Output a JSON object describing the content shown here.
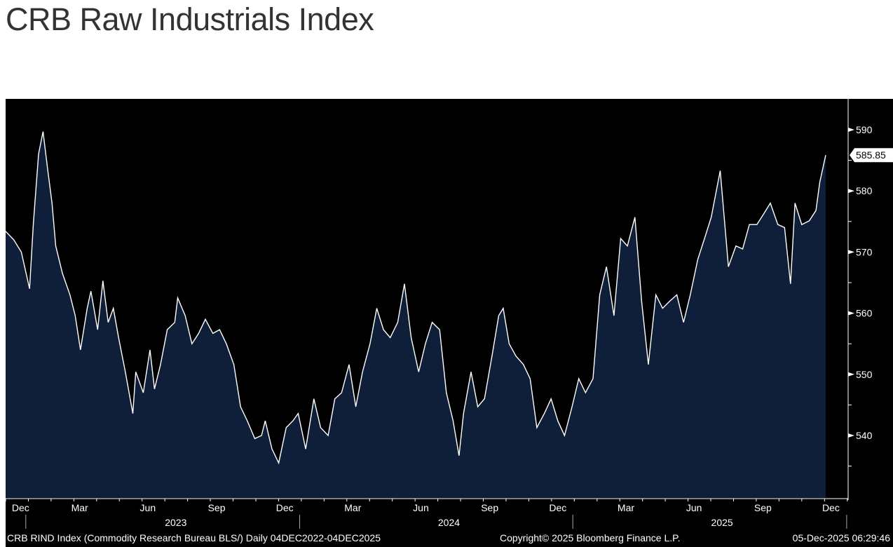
{
  "chart_data": {
    "type": "area",
    "title": "CRB Raw Industrials Index",
    "x_unit": "days since 04DEC2022",
    "ylim": [
      531,
      595
    ],
    "y_ticks": [
      540,
      550,
      560,
      570,
      580,
      590
    ],
    "last_value_label": "585.85",
    "x_ticks": [
      {
        "label": "Dec",
        "day": 20
      },
      {
        "label": "Mar",
        "day": 99
      },
      {
        "label": "Jun",
        "day": 190
      },
      {
        "label": "Sep",
        "day": 282
      },
      {
        "label": "Dec",
        "day": 373
      },
      {
        "label": "Mar",
        "day": 464
      },
      {
        "label": "Jun",
        "day": 555
      },
      {
        "label": "Sep",
        "day": 647
      },
      {
        "label": "Dec",
        "day": 738
      },
      {
        "label": "Mar",
        "day": 829
      },
      {
        "label": "Jun",
        "day": 920
      },
      {
        "label": "Sep",
        "day": 1012
      },
      {
        "label": "Dec",
        "day": 1103
      }
    ],
    "years": [
      {
        "label": "2023",
        "day": 190
      },
      {
        "label": "2024",
        "day": 555
      },
      {
        "label": "2025",
        "day": 920
      }
    ],
    "year_boundaries": [
      27,
      393,
      758,
      1124
    ],
    "x": [
      0,
      11,
      21,
      32,
      37,
      44,
      50,
      56,
      62,
      67,
      76,
      86,
      93,
      100,
      109,
      114,
      123,
      130,
      137,
      144,
      151,
      160,
      170,
      174,
      184,
      193,
      199,
      207,
      216,
      226,
      230,
      240,
      249,
      258,
      267,
      277,
      286,
      295,
      305,
      314,
      323,
      333,
      342,
      347,
      356,
      365,
      375,
      384,
      391,
      401,
      412,
      421,
      431,
      440,
      449,
      459,
      468,
      477,
      487,
      496,
      505,
      514,
      524,
      533,
      542,
      552,
      561,
      570,
      580,
      589,
      598,
      606,
      612,
      622,
      631,
      640,
      650,
      659,
      665,
      673,
      682,
      692,
      701,
      710,
      720,
      729,
      738,
      747,
      757,
      766,
      775,
      785,
      794,
      803,
      813,
      822,
      831,
      841,
      850,
      859,
      869,
      878,
      887,
      897,
      906,
      915,
      925,
      934,
      943,
      955,
      966,
      976,
      985,
      994,
      1004,
      1013,
      1022,
      1032,
      1041,
      1049,
      1055,
      1064,
      1074,
      1083,
      1088,
      1096
    ],
    "values": [
      573.4,
      572,
      570,
      564,
      574.5,
      586,
      589.7,
      583.7,
      578,
      571,
      566.5,
      563,
      559.6,
      554,
      560.8,
      563.6,
      557.3,
      565.3,
      558.5,
      560.8,
      556,
      550.4,
      543.6,
      550.4,
      547,
      554,
      547.6,
      551.6,
      557.3,
      558.5,
      562.5,
      559.6,
      555,
      556.7,
      559,
      556.7,
      557.3,
      555,
      551.6,
      544.7,
      542.4,
      539.5,
      540,
      542.4,
      537.8,
      535.5,
      541.3,
      542.4,
      543.6,
      537.8,
      546,
      541.3,
      540,
      546,
      547,
      551.6,
      544.7,
      550.4,
      555,
      560.8,
      557.3,
      556,
      558.5,
      564.8,
      556,
      550.4,
      555,
      558.5,
      557.3,
      547,
      542.4,
      536.7,
      543.6,
      550.4,
      544.7,
      546,
      553,
      559.6,
      560.8,
      555,
      553,
      551.6,
      549.3,
      541.3,
      543.6,
      546,
      542.4,
      540,
      544.7,
      549.3,
      547,
      549.3,
      563,
      567.6,
      559.6,
      572.2,
      571,
      575.7,
      561.9,
      551.6,
      563,
      560.8,
      561.9,
      563,
      558.5,
      563,
      568.8,
      572.2,
      575.7,
      583.3,
      567.6,
      571,
      570.5,
      574.5,
      574.5,
      576.2,
      578,
      574.5,
      574,
      564.8,
      578,
      574.5,
      575.1,
      576.8,
      581.4,
      585.85
    ],
    "colors": {
      "background": "#000000",
      "fill": "#0f1f3a",
      "line": "#ffffff",
      "text": "#ffffff"
    }
  },
  "footer": {
    "source": "CRB RIND Index (Commodity Research Bureau BLS/) Daily 04DEC2022-04DEC2025",
    "copyright": "Copyright© 2025 Bloomberg Finance L.P.",
    "timestamp": "05-Dec-2025 06:29:46"
  }
}
